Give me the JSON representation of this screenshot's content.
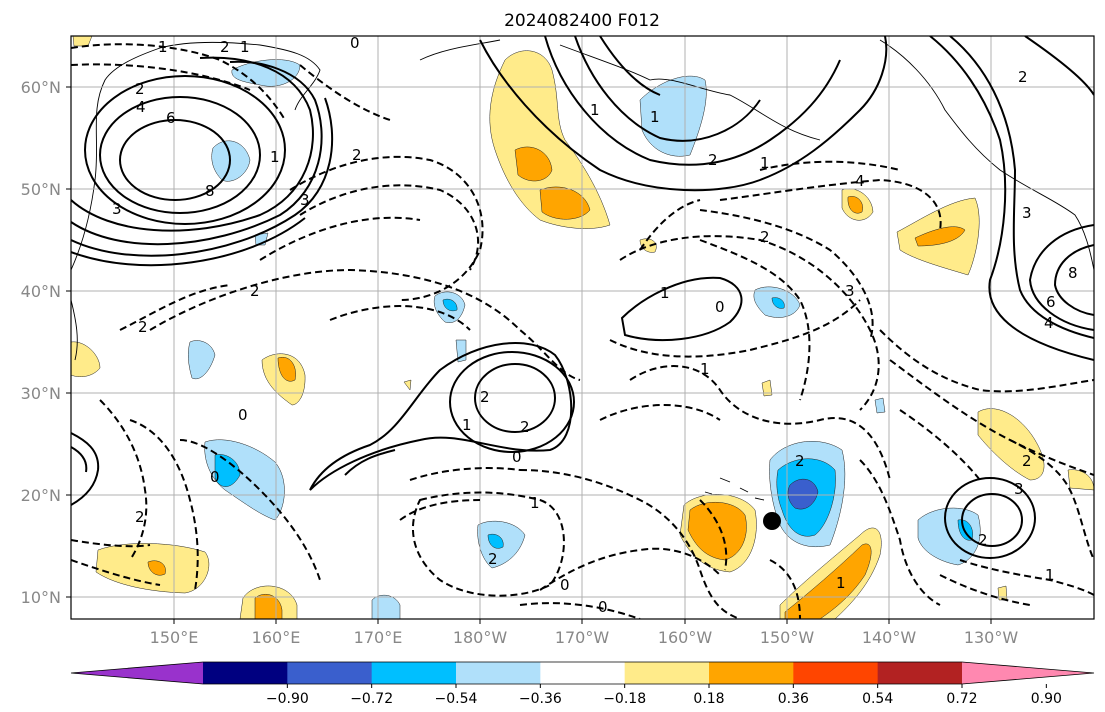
{
  "title": "2024082400 F012",
  "map": {
    "lat_labels": [
      "60°N",
      "50°N",
      "40°N",
      "30°N",
      "20°N",
      "10°N"
    ],
    "lon_labels": [
      "150°E",
      "160°E",
      "170°E",
      "180°W",
      "170°W",
      "160°W",
      "150°W",
      "140°W",
      "130°W"
    ],
    "grid": true,
    "marker": "black-dot-near-hawaii"
  },
  "colorbar": {
    "tick_labels": [
      "−0.90",
      "−0.72",
      "−0.54",
      "−0.36",
      "−0.18",
      "0.18",
      "0.36",
      "0.54",
      "0.72",
      "0.90"
    ],
    "colors": [
      "#9932CC",
      "#000080",
      "#3A5FCD",
      "#00BFFF",
      "#B0E0FA",
      "#FFFFFF",
      "#FFEB8A",
      "#FFA500",
      "#FF4500",
      "#B22222",
      "#FF88B0"
    ],
    "extend": "both"
  },
  "contour_labels": {
    "positive": [
      "1",
      "2",
      "4",
      "6",
      "8",
      "3",
      "1",
      "2",
      "1",
      "2",
      "3",
      "6",
      "4",
      "8",
      "2",
      "1",
      "3",
      "2"
    ],
    "negative": [
      "0",
      "1",
      "2",
      "3",
      "2",
      "1",
      "2",
      "0",
      "2",
      "1",
      "2",
      "4",
      "1",
      "3",
      "0",
      "2",
      "0",
      "1",
      "2",
      "0",
      "1",
      "0",
      "2",
      "2",
      "1",
      "0",
      "2",
      "1"
    ]
  }
}
